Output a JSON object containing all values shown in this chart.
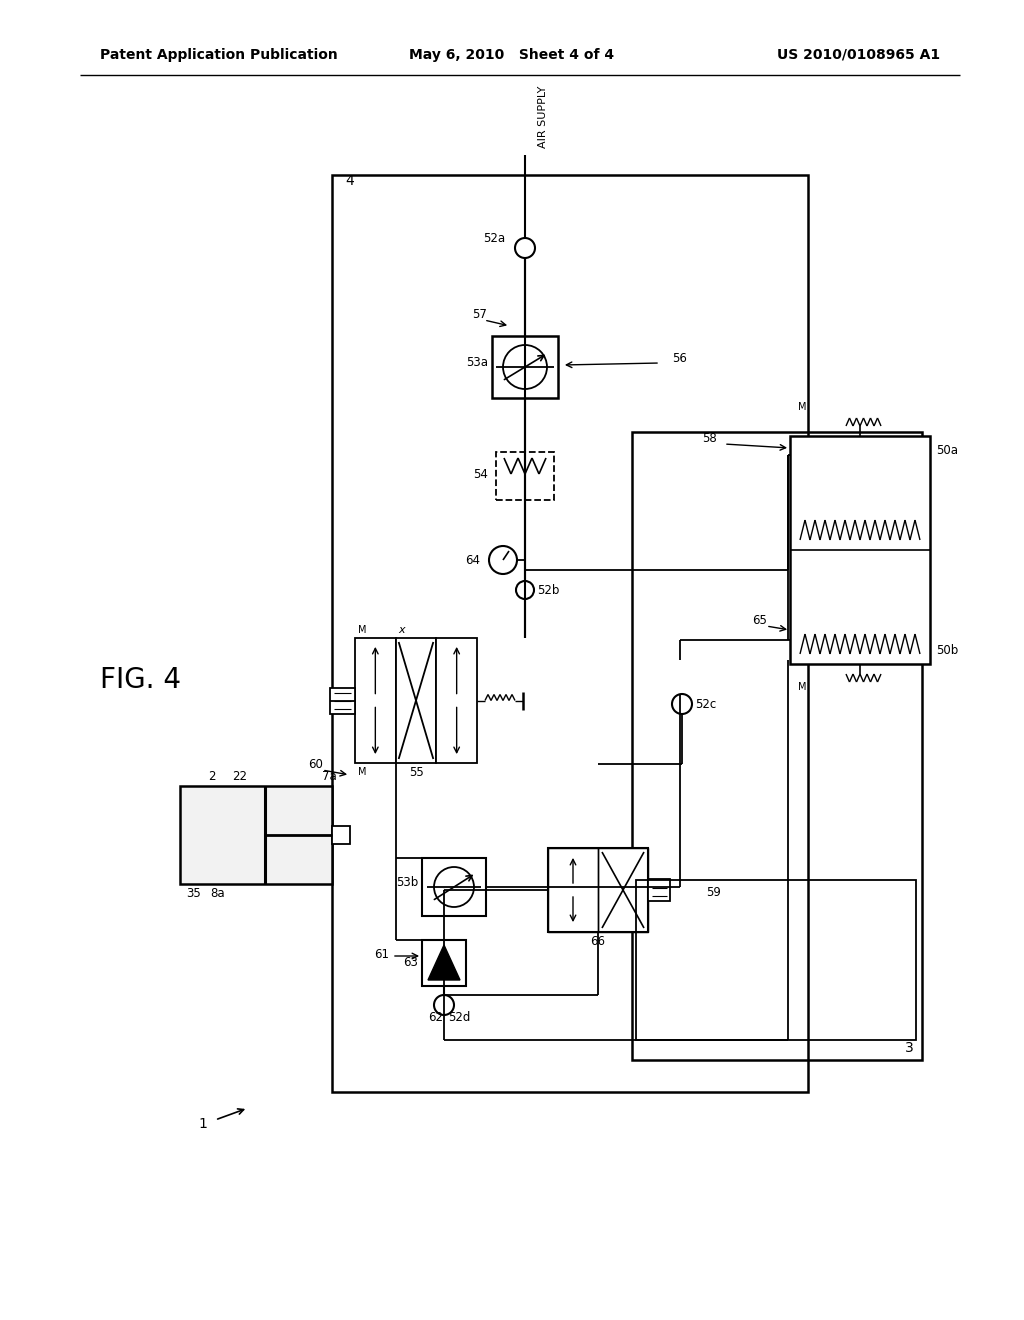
{
  "title_left": "Patent Application Publication",
  "title_mid": "May 6, 2010   Sheet 4 of 4",
  "title_right": "US 2010/0108965 A1",
  "fig_label": "FIG. 4",
  "background": "#ffffff",
  "line_color": "#000000"
}
